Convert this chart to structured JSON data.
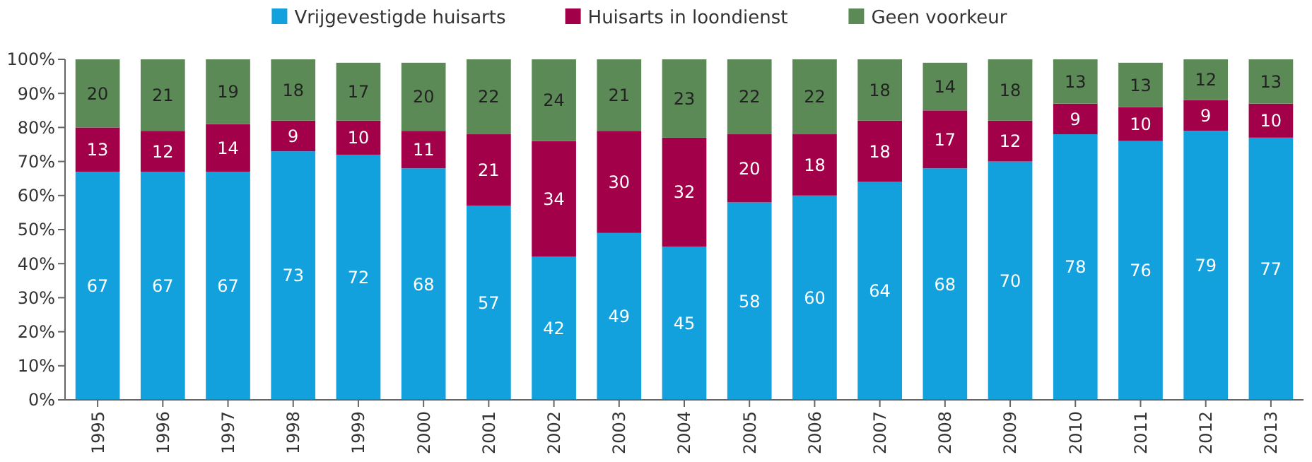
{
  "chart_data": {
    "type": "bar",
    "stacked": true,
    "data_labels": true,
    "legend": "top",
    "grid": false,
    "categories": [
      "1995",
      "1996",
      "1997",
      "1998",
      "1999",
      "2000",
      "2001",
      "2002",
      "2003",
      "2004",
      "2005",
      "2006",
      "2007",
      "2008",
      "2009",
      "2010",
      "2011",
      "2012",
      "2013"
    ],
    "ylim": [
      0,
      100
    ],
    "yticks": [
      {
        "value": 0,
        "label": "0%"
      },
      {
        "value": 10,
        "label": "10%"
      },
      {
        "value": 20,
        "label": "20%"
      },
      {
        "value": 30,
        "label": "30%"
      },
      {
        "value": 40,
        "label": "40%"
      },
      {
        "value": 50,
        "label": "50%"
      },
      {
        "value": 60,
        "label": "60%"
      },
      {
        "value": 70,
        "label": "70%"
      },
      {
        "value": 80,
        "label": "80%"
      },
      {
        "value": 90,
        "label": "90%"
      },
      {
        "value": 100,
        "label": "100%"
      }
    ],
    "series": [
      {
        "name": "Vrijgevestigde huisarts",
        "color": "#12a1dd",
        "values": [
          67,
          67,
          67,
          73,
          72,
          68,
          57,
          42,
          49,
          45,
          58,
          60,
          64,
          68,
          70,
          78,
          76,
          79,
          77
        ]
      },
      {
        "name": "Huisarts in loondienst",
        "color": "#a3004a",
        "values": [
          13,
          12,
          14,
          9,
          10,
          11,
          21,
          34,
          30,
          32,
          20,
          18,
          18,
          17,
          12,
          9,
          10,
          9,
          10
        ]
      },
      {
        "name": "Geen voorkeur",
        "color": "#5c8a57",
        "values": [
          20,
          21,
          19,
          18,
          17,
          20,
          22,
          24,
          21,
          23,
          22,
          22,
          18,
          14,
          18,
          13,
          13,
          12,
          13
        ]
      }
    ]
  }
}
